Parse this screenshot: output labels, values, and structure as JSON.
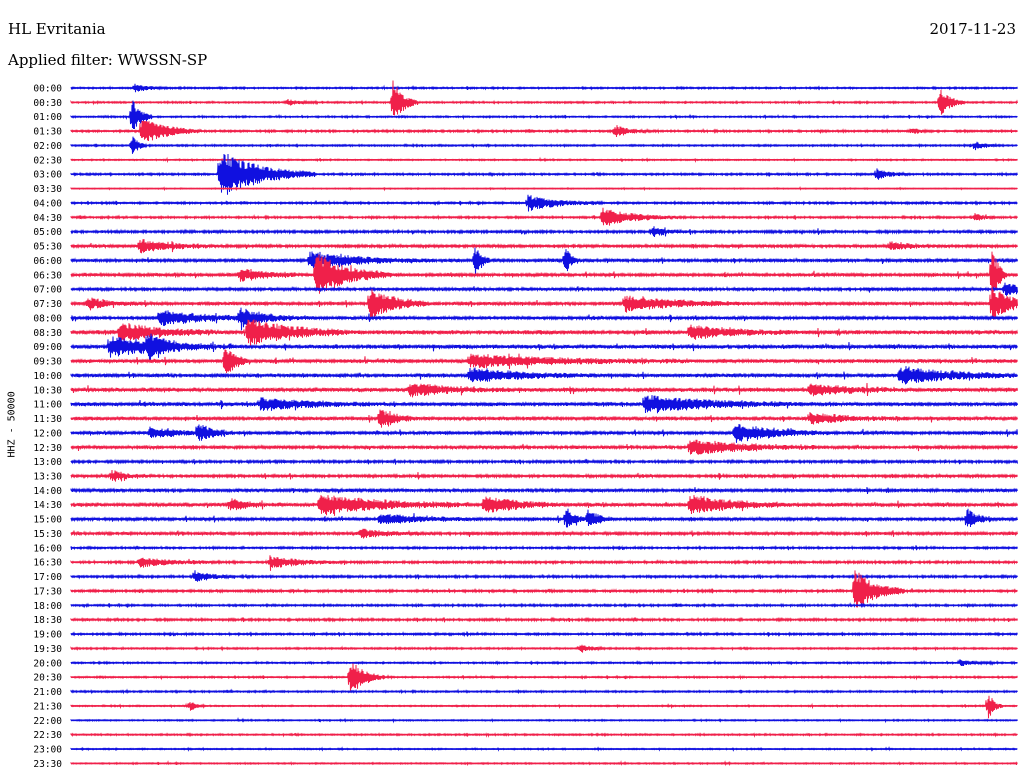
{
  "header": {
    "station": "HL Evritania",
    "date": "2017-11-23",
    "filter": "Applied filter: WWSSN-SP"
  },
  "chart_data": {
    "type": "line",
    "ylabel": "HHZ - 50000",
    "trace_colors": [
      "#1010e0",
      "#f0204a"
    ],
    "categories": [
      "00:00",
      "00:30",
      "01:00",
      "01:30",
      "02:00",
      "02:30",
      "03:00",
      "03:30",
      "04:00",
      "04:30",
      "05:00",
      "05:30",
      "06:00",
      "06:30",
      "07:00",
      "07:30",
      "08:00",
      "08:30",
      "09:00",
      "09:30",
      "10:00",
      "10:30",
      "11:00",
      "11:30",
      "12:00",
      "12:30",
      "13:00",
      "13:30",
      "14:00",
      "14:30",
      "15:00",
      "15:30",
      "16:00",
      "16:30",
      "17:00",
      "17:30",
      "18:00",
      "18:30",
      "19:00",
      "19:30",
      "20:00",
      "20:30",
      "21:00",
      "21:30",
      "22:00",
      "22:30",
      "23:00",
      "23:30"
    ],
    "activity": [
      0.5,
      0.5,
      0.5,
      0.6,
      0.5,
      0.4,
      0.6,
      0.3,
      0.6,
      0.6,
      0.8,
      0.9,
      1.0,
      1.0,
      0.9,
      1.0,
      1.0,
      1.3,
      1.3,
      1.2,
      1.1,
      1.3,
      1.2,
      1.1,
      1.0,
      1.0,
      0.8,
      0.9,
      1.0,
      1.2,
      1.0,
      0.9,
      0.6,
      0.7,
      0.7,
      0.7,
      0.6,
      0.7,
      0.6,
      0.5,
      0.5,
      0.5,
      0.5,
      0.4,
      0.4,
      0.5,
      0.4,
      0.4
    ],
    "events": [
      {
        "row": 0,
        "x": 135,
        "amp": 4,
        "dur": 14
      },
      {
        "row": 1,
        "x": 393,
        "amp": 22,
        "dur": 10
      },
      {
        "row": 1,
        "x": 940,
        "amp": 14,
        "dur": 10
      },
      {
        "row": 1,
        "x": 288,
        "amp": 3,
        "dur": 12
      },
      {
        "row": 2,
        "x": 132,
        "amp": 18,
        "dur": 8
      },
      {
        "row": 3,
        "x": 142,
        "amp": 14,
        "dur": 24
      },
      {
        "row": 3,
        "x": 615,
        "amp": 6,
        "dur": 14
      },
      {
        "row": 3,
        "x": 912,
        "amp": 3,
        "dur": 8
      },
      {
        "row": 4,
        "x": 975,
        "amp": 4,
        "dur": 10
      },
      {
        "row": 4,
        "x": 132,
        "amp": 10,
        "dur": 6
      },
      {
        "row": 6,
        "x": 220,
        "amp": 24,
        "dur": 38
      },
      {
        "row": 6,
        "x": 877,
        "amp": 6,
        "dur": 12
      },
      {
        "row": 8,
        "x": 528,
        "amp": 8,
        "dur": 30
      },
      {
        "row": 9,
        "x": 603,
        "amp": 9,
        "dur": 30
      },
      {
        "row": 9,
        "x": 975,
        "amp": 4,
        "dur": 8
      },
      {
        "row": 10,
        "x": 652,
        "amp": 5,
        "dur": 14
      },
      {
        "row": 11,
        "x": 140,
        "amp": 7,
        "dur": 30
      },
      {
        "row": 11,
        "x": 890,
        "amp": 4,
        "dur": 24
      },
      {
        "row": 12,
        "x": 310,
        "amp": 8,
        "dur": 50
      },
      {
        "row": 12,
        "x": 475,
        "amp": 16,
        "dur": 6
      },
      {
        "row": 12,
        "x": 565,
        "amp": 14,
        "dur": 6
      },
      {
        "row": 13,
        "x": 316,
        "amp": 22,
        "dur": 30
      },
      {
        "row": 13,
        "x": 240,
        "amp": 6,
        "dur": 30
      },
      {
        "row": 13,
        "x": 992,
        "amp": 30,
        "dur": 6
      },
      {
        "row": 14,
        "x": 1005,
        "amp": 6,
        "dur": 24
      },
      {
        "row": 15,
        "x": 370,
        "amp": 16,
        "dur": 24
      },
      {
        "row": 15,
        "x": 625,
        "amp": 8,
        "dur": 50
      },
      {
        "row": 15,
        "x": 992,
        "amp": 18,
        "dur": 16
      },
      {
        "row": 15,
        "x": 88,
        "amp": 6,
        "dur": 22
      },
      {
        "row": 16,
        "x": 160,
        "amp": 8,
        "dur": 40
      },
      {
        "row": 16,
        "x": 240,
        "amp": 8,
        "dur": 30
      },
      {
        "row": 17,
        "x": 248,
        "amp": 14,
        "dur": 40
      },
      {
        "row": 17,
        "x": 690,
        "amp": 7,
        "dur": 40
      },
      {
        "row": 17,
        "x": 120,
        "amp": 9,
        "dur": 40
      },
      {
        "row": 18,
        "x": 110,
        "amp": 10,
        "dur": 50
      },
      {
        "row": 18,
        "x": 148,
        "amp": 10,
        "dur": 14
      },
      {
        "row": 19,
        "x": 225,
        "amp": 16,
        "dur": 10
      },
      {
        "row": 19,
        "x": 470,
        "amp": 6,
        "dur": 90
      },
      {
        "row": 20,
        "x": 470,
        "amp": 7,
        "dur": 50
      },
      {
        "row": 20,
        "x": 900,
        "amp": 9,
        "dur": 50
      },
      {
        "row": 21,
        "x": 410,
        "amp": 6,
        "dur": 40
      },
      {
        "row": 21,
        "x": 810,
        "amp": 5,
        "dur": 40
      },
      {
        "row": 22,
        "x": 645,
        "amp": 9,
        "dur": 60
      },
      {
        "row": 22,
        "x": 260,
        "amp": 6,
        "dur": 50
      },
      {
        "row": 23,
        "x": 380,
        "amp": 10,
        "dur": 14
      },
      {
        "row": 23,
        "x": 810,
        "amp": 5,
        "dur": 40
      },
      {
        "row": 24,
        "x": 198,
        "amp": 8,
        "dur": 14
      },
      {
        "row": 24,
        "x": 735,
        "amp": 9,
        "dur": 40
      },
      {
        "row": 24,
        "x": 150,
        "amp": 5,
        "dur": 30
      },
      {
        "row": 25,
        "x": 690,
        "amp": 8,
        "dur": 50
      },
      {
        "row": 27,
        "x": 112,
        "amp": 5,
        "dur": 14
      },
      {
        "row": 29,
        "x": 320,
        "amp": 10,
        "dur": 60
      },
      {
        "row": 29,
        "x": 485,
        "amp": 9,
        "dur": 30
      },
      {
        "row": 29,
        "x": 690,
        "amp": 9,
        "dur": 40
      },
      {
        "row": 29,
        "x": 230,
        "amp": 6,
        "dur": 16
      },
      {
        "row": 30,
        "x": 566,
        "amp": 10,
        "dur": 8
      },
      {
        "row": 30,
        "x": 588,
        "amp": 10,
        "dur": 10
      },
      {
        "row": 30,
        "x": 967,
        "amp": 10,
        "dur": 10
      },
      {
        "row": 30,
        "x": 380,
        "amp": 5,
        "dur": 40
      },
      {
        "row": 31,
        "x": 360,
        "amp": 4,
        "dur": 30
      },
      {
        "row": 33,
        "x": 140,
        "amp": 5,
        "dur": 30
      },
      {
        "row": 33,
        "x": 270,
        "amp": 6,
        "dur": 30
      },
      {
        "row": 34,
        "x": 195,
        "amp": 6,
        "dur": 16
      },
      {
        "row": 35,
        "x": 855,
        "amp": 22,
        "dur": 20
      },
      {
        "row": 39,
        "x": 580,
        "amp": 5,
        "dur": 10
      },
      {
        "row": 40,
        "x": 960,
        "amp": 3,
        "dur": 14
      },
      {
        "row": 41,
        "x": 350,
        "amp": 18,
        "dur": 14
      },
      {
        "row": 43,
        "x": 190,
        "amp": 5,
        "dur": 6
      },
      {
        "row": 43,
        "x": 988,
        "amp": 14,
        "dur": 6
      }
    ]
  }
}
